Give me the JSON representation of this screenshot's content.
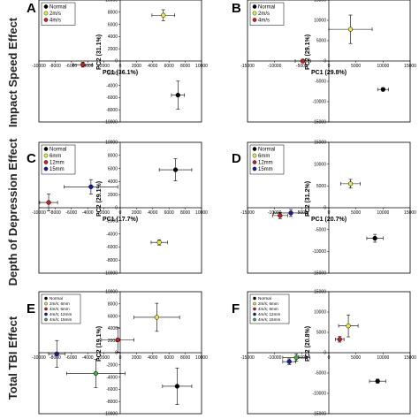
{
  "row_labels": [
    "Impact Speed Effect",
    "Depth of Depression Effect",
    "Total TBI Effect"
  ],
  "colors": {
    "Normal": "#000000",
    "2m/s": "#e8e840",
    "4m/s": "#c81e1e",
    "6mm": "#e8e840",
    "12mm": "#c81e1e",
    "15mm": "#1a1aa0",
    "4m/s; 12mm": "#1a1aa0",
    "4m/s; 15mm": "#40b040",
    "2m/s; 6mm": "#e8e840",
    "4m/s; 6mm": "#c81e1e"
  },
  "chart_data": [
    {
      "panel": "A",
      "type": "scatter",
      "xlabel": "PC1 (36.1%)",
      "ylabel": "PC2 (31.1%)",
      "xlim": [
        -10000,
        10000
      ],
      "ylim": [
        -10000,
        10000
      ],
      "xticks": [
        -10000,
        -8000,
        -6000,
        -4000,
        -2000,
        0,
        2000,
        4000,
        6000,
        8000,
        10000
      ],
      "yticks": [
        -10000,
        -8000,
        -6000,
        -4000,
        -2000,
        0,
        2000,
        4000,
        6000,
        8000,
        10000
      ],
      "legend": [
        "Normal",
        "2m/s",
        "4m/s"
      ],
      "series": [
        {
          "name": "Normal",
          "x": 7100,
          "y": -5600,
          "xerr": 800,
          "yerr": 2300
        },
        {
          "name": "2m/s",
          "x": 5300,
          "y": 7500,
          "xerr": 1400,
          "yerr": 900
        },
        {
          "name": "4m/s",
          "x": -4600,
          "y": -600,
          "xerr": 1200,
          "yerr": 400
        }
      ]
    },
    {
      "panel": "B",
      "type": "scatter",
      "xlabel": "PC1 (29.8%)",
      "ylabel": "PC2 (29.1%)",
      "xlim": [
        -15000,
        15000
      ],
      "ylim": [
        -15000,
        15000
      ],
      "xticks": [
        -15000,
        -10000,
        -5000,
        0,
        5000,
        10000,
        15000
      ],
      "yticks": [
        -15000,
        -10000,
        -5000,
        0,
        5000,
        10000,
        15000
      ],
      "legend": [
        "Normal",
        "2m/s",
        "4m/s"
      ],
      "series": [
        {
          "name": "Normal",
          "x": 10000,
          "y": -7000,
          "xerr": 1000,
          "yerr": 400
        },
        {
          "name": "2m/s",
          "x": 4000,
          "y": 7800,
          "xerr": 4000,
          "yerr": 3500
        },
        {
          "name": "4m/s",
          "x": -4800,
          "y": 0,
          "xerr": 1400,
          "yerr": 400
        }
      ]
    },
    {
      "panel": "C",
      "type": "scatter",
      "xlabel": "PC1 (17.7%)",
      "ylabel": "PC2 (29.1%)",
      "xlim": [
        -10000,
        10000
      ],
      "ylim": [
        -10000,
        10000
      ],
      "xticks": [
        -10000,
        -8000,
        -6000,
        -4000,
        -2000,
        0,
        2000,
        4000,
        6000,
        8000,
        10000
      ],
      "yticks": [
        -10000,
        -8000,
        -6000,
        -4000,
        -2000,
        0,
        2000,
        4000,
        6000,
        8000,
        10000
      ],
      "legend": [
        "Normal",
        "6mm",
        "12mm",
        "15mm"
      ],
      "series": [
        {
          "name": "Normal",
          "x": 6800,
          "y": 5800,
          "xerr": 2000,
          "yerr": 1700
        },
        {
          "name": "6mm",
          "x": 4800,
          "y": -5300,
          "xerr": 1000,
          "yerr": 400
        },
        {
          "name": "12mm",
          "x": -8800,
          "y": 800,
          "xerr": 1100,
          "yerr": 1300
        },
        {
          "name": "15mm",
          "x": -3600,
          "y": 3200,
          "xerr": 3300,
          "yerr": 1100
        }
      ]
    },
    {
      "panel": "D",
      "type": "scatter",
      "xlabel": "PC1 (20.7%)",
      "ylabel": "PC2 (31.2%)",
      "xlim": [
        -15000,
        15000
      ],
      "ylim": [
        -15000,
        15000
      ],
      "xticks": [
        -15000,
        -10000,
        -5000,
        0,
        5000,
        10000,
        15000
      ],
      "yticks": [
        -15000,
        -10000,
        -5000,
        0,
        5000,
        10000,
        15000
      ],
      "legend": [
        "Normal",
        "6mm",
        "12mm",
        "15mm"
      ],
      "series": [
        {
          "name": "Normal",
          "x": 8500,
          "y": -7000,
          "xerr": 1500,
          "yerr": 900
        },
        {
          "name": "6mm",
          "x": 4000,
          "y": 5500,
          "xerr": 1800,
          "yerr": 1000
        },
        {
          "name": "12mm",
          "x": -9000,
          "y": -1800,
          "xerr": 1400,
          "yerr": 700
        },
        {
          "name": "15mm",
          "x": -7000,
          "y": -1200,
          "xerr": 3200,
          "yerr": 800
        }
      ]
    },
    {
      "panel": "E",
      "type": "scatter",
      "xlabel": "",
      "ylabel": "PC2 (19.1%)",
      "xlim": [
        -10000,
        10000
      ],
      "ylim": [
        -10000,
        10000
      ],
      "xticks": [
        -10000,
        -8000,
        -6000,
        -4000,
        -2000,
        0,
        2000,
        4000,
        6000,
        8000,
        10000
      ],
      "yticks": [
        -10000,
        -8000,
        -6000,
        -4000,
        -2000,
        0,
        2000,
        4000,
        6000,
        8000,
        10000
      ],
      "legend": [
        "Normal",
        "2m/s; 6mm",
        "4m/s; 6mm",
        "4m/s; 12mm",
        "4m/s; 15mm"
      ],
      "series": [
        {
          "name": "Normal",
          "x": 7000,
          "y": -5500,
          "xerr": 1800,
          "yerr": 3000
        },
        {
          "name": "2m/s; 6mm",
          "x": 4500,
          "y": 5800,
          "xerr": 2800,
          "yerr": 2300
        },
        {
          "name": "4m/s; 6mm",
          "x": -300,
          "y": 2100,
          "xerr": 2000,
          "yerr": 2000
        },
        {
          "name": "4m/s; 12mm",
          "x": -7800,
          "y": -200,
          "xerr": 1000,
          "yerr": 2200
        },
        {
          "name": "4m/s; 15mm",
          "x": -3000,
          "y": -3400,
          "xerr": 3600,
          "yerr": 2300
        }
      ]
    },
    {
      "panel": "F",
      "type": "scatter",
      "xlabel": "",
      "ylabel": "PC2 (20.8%)",
      "xlim": [
        -15000,
        15000
      ],
      "ylim": [
        -15000,
        15000
      ],
      "xticks": [
        -15000,
        -10000,
        -5000,
        0,
        5000,
        10000,
        15000
      ],
      "yticks": [
        -15000,
        -10000,
        -5000,
        0,
        5000,
        10000,
        15000
      ],
      "legend": [
        "Normal",
        "2m/s; 6mm",
        "4m/s; 6mm",
        "4m/s; 12mm",
        "4m/s; 15mm"
      ],
      "series": [
        {
          "name": "Normal",
          "x": 9000,
          "y": -7000,
          "xerr": 1500,
          "yerr": 500
        },
        {
          "name": "2m/s; 6mm",
          "x": 3600,
          "y": 6600,
          "xerr": 1800,
          "yerr": 2700
        },
        {
          "name": "4m/s; 6mm",
          "x": 2000,
          "y": 3300,
          "xerr": 800,
          "yerr": 700
        },
        {
          "name": "4m/s; 12mm",
          "x": -7300,
          "y": -2200,
          "xerr": 1200,
          "yerr": 700
        },
        {
          "name": "4m/s; 15mm",
          "x": -6000,
          "y": -1200,
          "xerr": 2500,
          "yerr": 900
        }
      ]
    }
  ]
}
